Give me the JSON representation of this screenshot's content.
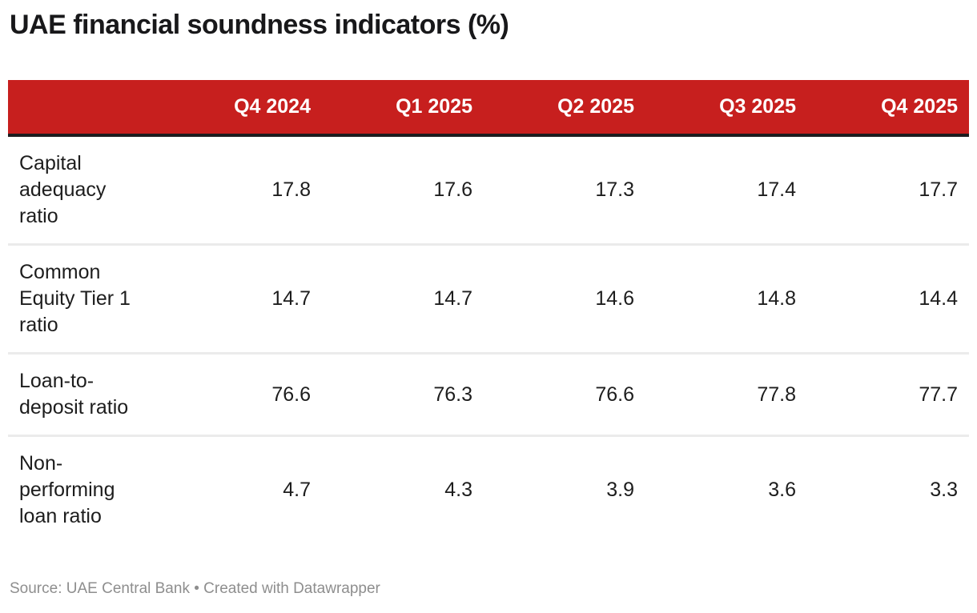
{
  "title": "UAE financial soundness indicators (%)",
  "footer": {
    "text": "Source: UAE Central Bank • Created with Datawrapper"
  },
  "colors": {
    "header_bg": "#c71f1e",
    "header_text": "#ffffff",
    "header_border": "#1c1c1e",
    "row_divider": "#ebebeb",
    "body_text": "#1d1d1d",
    "footer_text": "#8e8e8e",
    "background": "#ffffff"
  },
  "chart_data": {
    "type": "table",
    "title": "UAE financial soundness indicators (%)",
    "columns": [
      "",
      "Q4 2024",
      "Q1 2025",
      "Q2 2025",
      "Q3 2025",
      "Q4 2025"
    ],
    "rows": [
      {
        "label": "Capital adequacy ratio",
        "label_wrapped": "Capital\nadequacy\nratio",
        "values": [
          17.8,
          17.6,
          17.3,
          17.4,
          17.7
        ]
      },
      {
        "label": "Common Equity Tier 1 ratio",
        "label_wrapped": "Common\nEquity Tier 1\nratio",
        "values": [
          14.7,
          14.7,
          14.6,
          14.8,
          14.4
        ]
      },
      {
        "label": "Loan-to-deposit ratio",
        "label_wrapped": "Loan-to-\ndeposit ratio",
        "values": [
          76.6,
          76.3,
          76.6,
          77.8,
          77.7
        ]
      },
      {
        "label": "Non-performing loan ratio",
        "label_wrapped": "Non-\nperforming\nloan ratio",
        "values": [
          4.7,
          4.3,
          3.9,
          3.6,
          3.3
        ]
      }
    ],
    "source_note": "Source: UAE Central Bank • Created with Datawrapper",
    "value_format": "one-decimal",
    "grid": "horizontal-dividers",
    "legend": "none"
  }
}
